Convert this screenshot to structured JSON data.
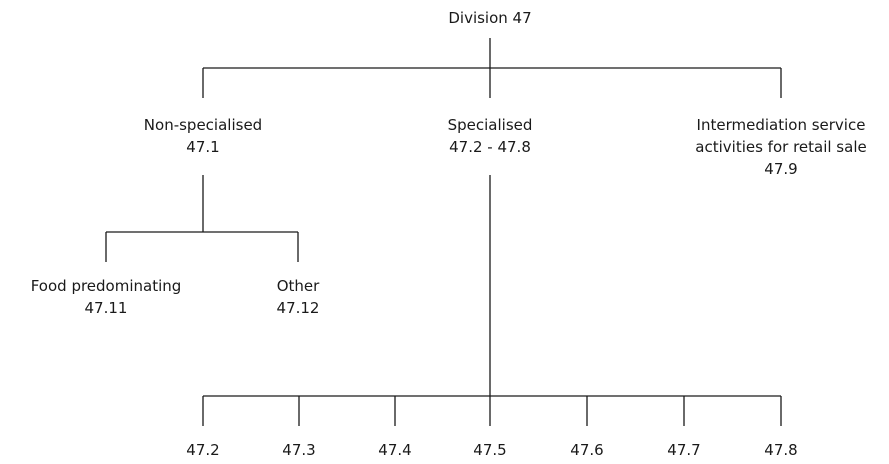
{
  "diagram": {
    "root": {
      "label": "Division 47"
    },
    "level1": [
      {
        "label": "Non-specialised",
        "code": "47.1"
      },
      {
        "label": "Specialised",
        "code": "47.2 - 47.8"
      },
      {
        "label_line1": "Intermediation service",
        "label_line2": "activities for retail sale",
        "code": "47.9"
      }
    ],
    "nonspecialised_children": [
      {
        "label": "Food predominating",
        "code": "47.11"
      },
      {
        "label": "Other",
        "code": "47.12"
      }
    ],
    "specialised_children": [
      "47.2",
      "47.3",
      "47.4",
      "47.5",
      "47.6",
      "47.7",
      "47.8"
    ]
  }
}
